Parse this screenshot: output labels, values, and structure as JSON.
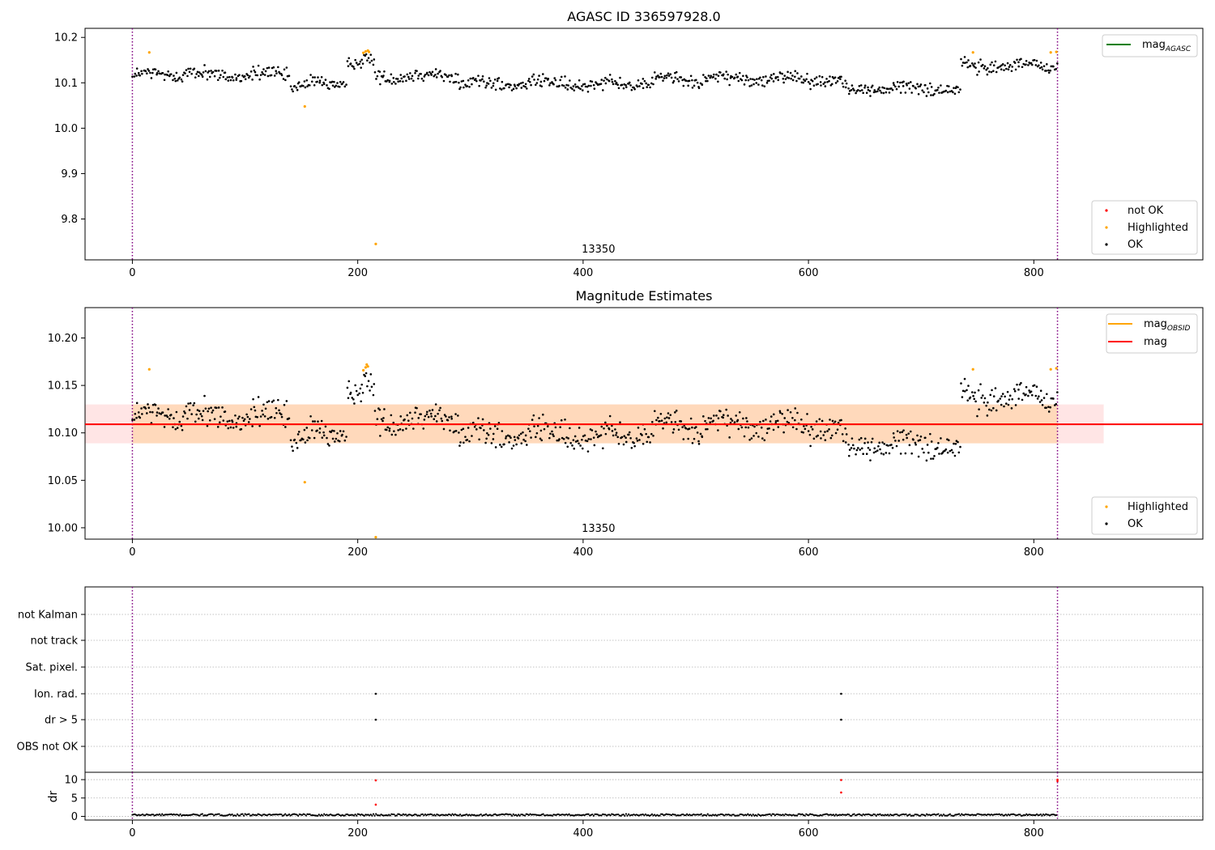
{
  "chart_data": [
    {
      "type": "scatter",
      "title": "AGASC ID 336597928.0",
      "xlim": [
        -42,
        950
      ],
      "ylim": [
        9.71,
        10.22
      ],
      "x_ticks": [
        0,
        200,
        400,
        600,
        800
      ],
      "x_tick_labels": [
        "0",
        "200",
        "400",
        "600",
        "800"
      ],
      "y_ticks": [
        9.8,
        9.9,
        10.0,
        10.1,
        10.2
      ],
      "y_tick_labels": [
        "9.8",
        "9.9",
        "10.0",
        "10.1",
        "10.2"
      ],
      "obsid_label": "13350",
      "obsid_label_x": 410,
      "obs_boundaries": [
        0,
        821
      ],
      "segments": [
        {
          "x_start": 0,
          "x_end": 40,
          "y_mean": 10.118,
          "amp": 0.004,
          "noise": 0.011
        },
        {
          "x_start": 40,
          "x_end": 140,
          "y_mean": 10.118,
          "amp": 0.006,
          "noise": 0.011
        },
        {
          "x_start": 140,
          "x_end": 190,
          "y_mean": 10.095,
          "amp": 0.008,
          "noise": 0.011
        },
        {
          "x_start": 190,
          "x_end": 215,
          "y_mean": 10.145,
          "amp": 0.006,
          "noise": 0.01
        },
        {
          "x_start": 215,
          "x_end": 290,
          "y_mean": 10.115,
          "amp": 0.006,
          "noise": 0.011
        },
        {
          "x_start": 290,
          "x_end": 460,
          "y_mean": 10.098,
          "amp": 0.008,
          "noise": 0.012
        },
        {
          "x_start": 460,
          "x_end": 630,
          "y_mean": 10.108,
          "amp": 0.006,
          "noise": 0.011
        },
        {
          "x_start": 630,
          "x_end": 735,
          "y_mean": 10.088,
          "amp": 0.006,
          "noise": 0.011
        },
        {
          "x_start": 735,
          "x_end": 821,
          "y_mean": 10.138,
          "amp": 0.006,
          "noise": 0.011
        }
      ],
      "series": [
        {
          "name": "OK",
          "color": "#000000"
        },
        {
          "name": "Highlighted",
          "color": "#ffa500",
          "points": [
            [
              15,
              10.167
            ],
            [
              153,
              10.048
            ],
            [
              205,
              10.166
            ],
            [
              207,
              10.169
            ],
            [
              209,
              10.171
            ],
            [
              210,
              10.168
            ],
            [
              216,
              9.745
            ],
            [
              746,
              10.167
            ],
            [
              815,
              10.167
            ],
            [
              820,
              10.168
            ]
          ]
        },
        {
          "name": "not OK",
          "color": "#ff0000",
          "points": []
        }
      ],
      "lines": [
        {
          "name": "mag_AGASC",
          "color": "#008000"
        }
      ],
      "legends": [
        {
          "position": "upper right",
          "entries": [
            {
              "kind": "line",
              "label": "mag",
              "sub": "AGASC",
              "color": "#008000"
            }
          ]
        },
        {
          "position": "lower right",
          "entries": [
            {
              "kind": "marker",
              "label": "not OK",
              "color": "#ff0000"
            },
            {
              "kind": "marker",
              "label": "Highlighted",
              "color": "#ffa500"
            },
            {
              "kind": "marker",
              "label": "OK",
              "color": "#000000"
            }
          ]
        }
      ]
    },
    {
      "type": "scatter",
      "title": "Magnitude Estimates",
      "xlim": [
        -42,
        950
      ],
      "ylim": [
        9.988,
        10.232
      ],
      "x_ticks": [
        0,
        200,
        400,
        600,
        800
      ],
      "x_tick_labels": [
        "0",
        "200",
        "400",
        "600",
        "800"
      ],
      "y_ticks": [
        10.0,
        10.05,
        10.1,
        10.15,
        10.2
      ],
      "y_tick_labels": [
        "10.00",
        "10.05",
        "10.10",
        "10.15",
        "10.20"
      ],
      "obsid_label": "13350",
      "obsid_label_x": 410,
      "obs_boundaries": [
        0,
        821
      ],
      "mag": 10.109,
      "mag_band": [
        10.089,
        10.13
      ],
      "mag_extent": [
        -42,
        862
      ],
      "mag_obsid": 10.109,
      "mag_obsid_band": [
        10.089,
        10.13
      ],
      "mag_obsid_extent": [
        0,
        821
      ],
      "highlighted": [
        [
          15,
          10.167
        ],
        [
          153,
          10.048
        ],
        [
          205,
          10.166
        ],
        [
          207,
          10.169
        ],
        [
          208,
          10.172
        ],
        [
          209,
          10.17
        ],
        [
          216,
          9.99
        ],
        [
          746,
          10.167
        ],
        [
          815,
          10.167
        ],
        [
          820,
          10.168
        ]
      ],
      "legends": [
        {
          "position": "upper right",
          "entries": [
            {
              "kind": "line",
              "label": "mag",
              "sub": "OBSID",
              "color": "#ffa500"
            },
            {
              "kind": "line",
              "label": "mag",
              "sub": "",
              "color": "#ff0000"
            }
          ]
        },
        {
          "position": "lower right",
          "entries": [
            {
              "kind": "marker",
              "label": "Highlighted",
              "color": "#ffa500"
            },
            {
              "kind": "marker",
              "label": "OK",
              "color": "#000000"
            }
          ]
        }
      ]
    },
    {
      "type": "scatter",
      "xlim": [
        -42,
        950
      ],
      "flag_categories": [
        "not Kalman",
        "not track",
        "Sat. pixel.",
        "Ion. rad.",
        "dr > 5",
        "OBS not OK"
      ],
      "flag_points": [
        {
          "category": "Ion. rad.",
          "x": [
            216,
            629
          ]
        },
        {
          "category": "dr > 5",
          "x": [
            216,
            629
          ]
        }
      ],
      "obs_boundaries": [
        0,
        821
      ]
    },
    {
      "type": "scatter",
      "ylabel": "dr",
      "xlim": [
        -42,
        950
      ],
      "ylim": [
        -1,
        12
      ],
      "x_ticks": [
        0,
        200,
        400,
        600,
        800
      ],
      "x_tick_labels": [
        "0",
        "200",
        "400",
        "600",
        "800"
      ],
      "y_ticks": [
        0,
        5,
        10
      ],
      "y_tick_labels": [
        "0",
        "5",
        "10"
      ],
      "dr_baseline": 0.4,
      "dr_outliers": [
        [
          216,
          9.8
        ],
        [
          216,
          3.2
        ],
        [
          629,
          9.9
        ],
        [
          629,
          6.5
        ],
        [
          821,
          10.0
        ],
        [
          821,
          9.6
        ]
      ],
      "obs_boundaries": [
        0,
        821
      ]
    }
  ]
}
